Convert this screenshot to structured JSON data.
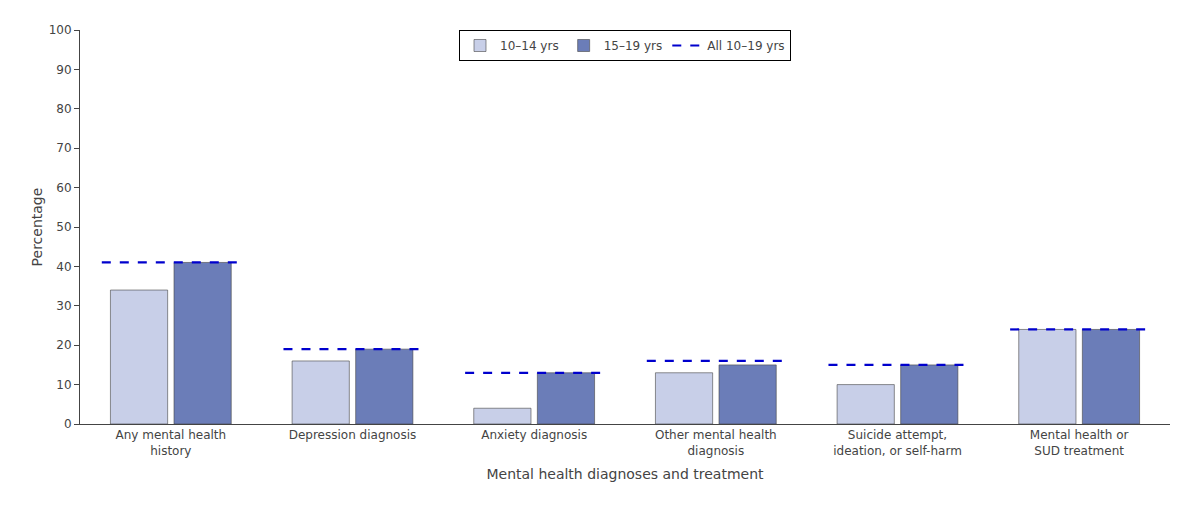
{
  "chart_data": {
    "type": "bar",
    "categories": [
      "Any mental health\nhistory",
      "Depression diagnosis",
      "Anxiety diagnosis",
      "Other mental health\ndiagnosis",
      "Suicide attempt,\nideation, or self-harm",
      "Mental health or\nSUD treatment"
    ],
    "series": [
      {
        "name": "10–14 yrs",
        "color": "#c8cfe8",
        "values": [
          34,
          16,
          4,
          13,
          10,
          24
        ]
      },
      {
        "name": "15–19 yrs",
        "color": "#6b7db8",
        "values": [
          41,
          19,
          13,
          15,
          15,
          24
        ]
      },
      {
        "name": "All 10–19 yrs",
        "type": "line",
        "line_style": "dashed",
        "color": "#0000cd",
        "values": [
          41,
          19,
          13,
          16,
          15,
          24
        ]
      }
    ],
    "xlabel": "Mental health diagnoses and treatment",
    "ylabel": "Percentage",
    "ylim": [
      0,
      100
    ],
    "yticks": [
      0,
      10,
      20,
      30,
      40,
      50,
      60,
      70,
      80,
      90,
      100
    ],
    "grid": false,
    "legend": "upper center"
  }
}
